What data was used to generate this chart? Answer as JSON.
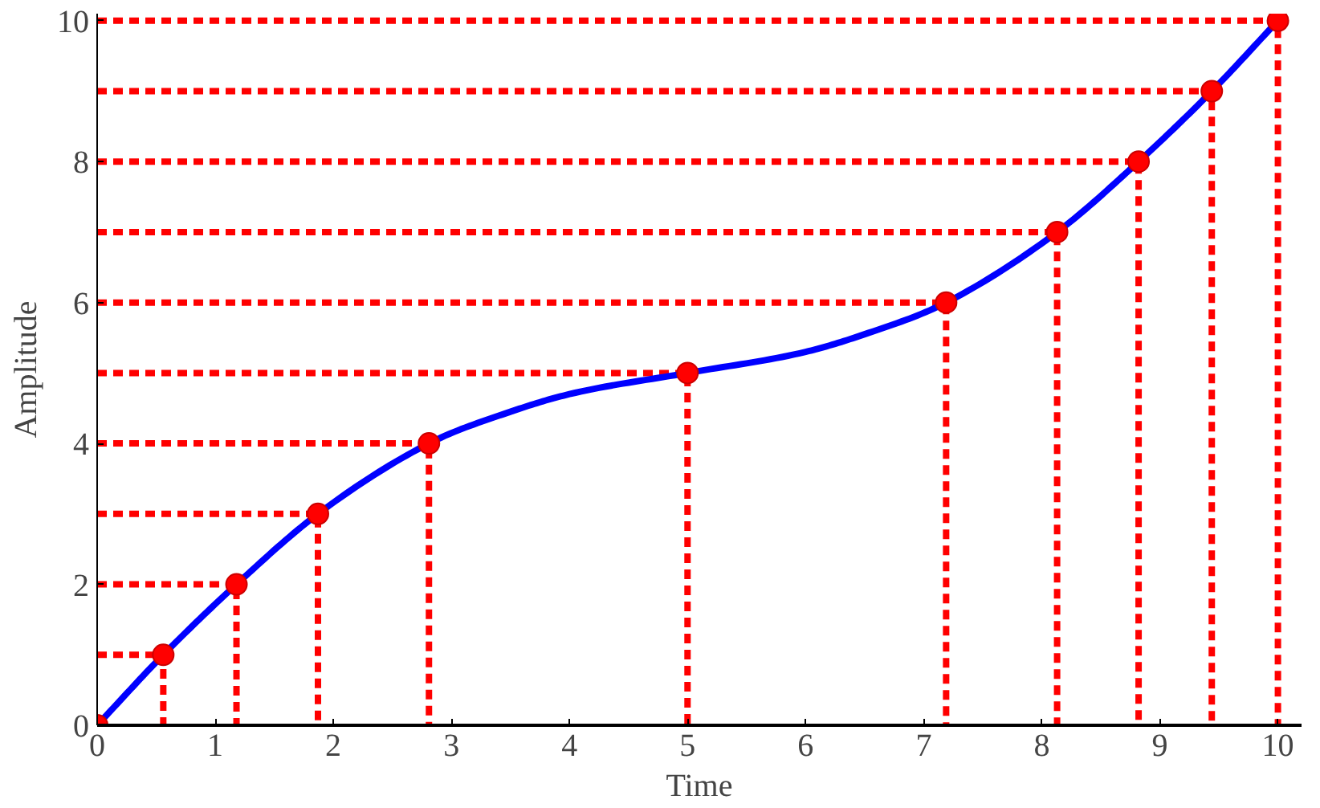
{
  "chart_data": {
    "type": "line",
    "xlabel": "Time",
    "ylabel": "Amplitude",
    "xlim": [
      0,
      10.2
    ],
    "ylim": [
      0,
      10.1
    ],
    "xticks": [
      0,
      1,
      2,
      3,
      4,
      5,
      6,
      7,
      8,
      9,
      10
    ],
    "yticks": [
      0,
      2,
      4,
      6,
      8,
      10
    ],
    "grid": false,
    "series": [
      {
        "color": "#ff0000",
        "marker": "none",
        "line_style": "dashed",
        "x": [
          0,
          0.56,
          0.56
        ],
        "values": [
          1,
          1,
          0
        ]
      },
      {
        "color": "#ff0000",
        "marker": "none",
        "line_style": "dashed",
        "x": [
          0,
          1.18,
          1.18
        ],
        "values": [
          2,
          2,
          0
        ]
      },
      {
        "color": "#ff0000",
        "marker": "none",
        "line_style": "dashed",
        "x": [
          0,
          1.87,
          1.87
        ],
        "values": [
          3,
          3,
          0
        ]
      },
      {
        "color": "#ff0000",
        "marker": "none",
        "line_style": "dashed",
        "x": [
          0,
          2.81,
          2.81
        ],
        "values": [
          4,
          4,
          0
        ]
      },
      {
        "color": "#ff0000",
        "marker": "none",
        "line_style": "dashed",
        "x": [
          0,
          5,
          5
        ],
        "values": [
          5,
          5,
          0
        ]
      },
      {
        "color": "#ff0000",
        "marker": "none",
        "line_style": "dashed",
        "x": [
          0,
          7.19,
          7.19
        ],
        "values": [
          6,
          6,
          0
        ]
      },
      {
        "color": "#ff0000",
        "marker": "none",
        "line_style": "dashed",
        "x": [
          0,
          8.13,
          8.13
        ],
        "values": [
          7,
          7,
          0
        ]
      },
      {
        "color": "#ff0000",
        "marker": "none",
        "line_style": "dashed",
        "x": [
          0,
          8.82,
          8.82
        ],
        "values": [
          8,
          8,
          0
        ]
      },
      {
        "color": "#ff0000",
        "marker": "none",
        "line_style": "dashed",
        "x": [
          0,
          9.44,
          9.44
        ],
        "values": [
          9,
          9,
          0
        ]
      },
      {
        "color": "#ff0000",
        "marker": "none",
        "line_style": "dashed",
        "x": [
          0,
          10,
          10
        ],
        "values": [
          10,
          10,
          0
        ]
      },
      {
        "color": "#0000ff",
        "marker": "none",
        "line_style": "solid",
        "x": [
          0,
          0.56,
          1.18,
          1.87,
          2.81,
          3.5,
          4,
          5,
          6,
          6.5,
          7.19,
          8.13,
          8.82,
          9.44,
          10
        ],
        "values": [
          0,
          1,
          2,
          3,
          4,
          4.45,
          4.7,
          5,
          5.3,
          5.55,
          6,
          7,
          8,
          9,
          10
        ]
      },
      {
        "type": "scatter",
        "color": "#ff0000",
        "marker": "circle",
        "x": [
          0,
          0.56,
          1.18,
          1.87,
          2.81,
          5,
          7.19,
          8.13,
          8.82,
          9.44,
          10
        ],
        "values": [
          0,
          1,
          2,
          3,
          4,
          5,
          6,
          7,
          8,
          9,
          10
        ]
      }
    ]
  }
}
